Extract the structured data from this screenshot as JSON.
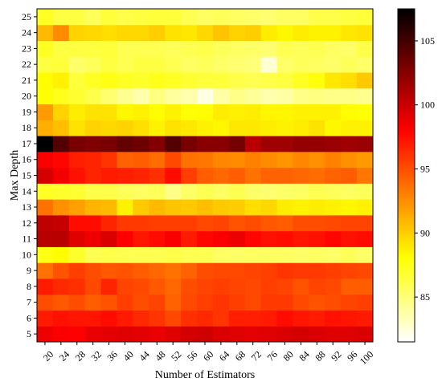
{
  "chart_data": {
    "type": "heatmap",
    "title": "",
    "xlabel": "Number of Estimators",
    "ylabel": "Max Depth",
    "x": [
      20,
      24,
      28,
      32,
      36,
      40,
      44,
      48,
      52,
      56,
      60,
      64,
      68,
      72,
      76,
      80,
      84,
      88,
      92,
      96,
      100
    ],
    "y": [
      5,
      6,
      7,
      8,
      9,
      10,
      11,
      12,
      13,
      14,
      15,
      16,
      17,
      18,
      19,
      20,
      21,
      22,
      23,
      24,
      25
    ],
    "colormap": "hot_r",
    "colorbar": {
      "min": 81.5,
      "max": 107.5,
      "ticks": [
        85,
        90,
        95,
        100,
        105
      ]
    },
    "z": [
      [
        98.6,
        98.2,
        98.0,
        98.8,
        99.0,
        99.2,
        99.0,
        98.8,
        99.2,
        99.6,
        99.8,
        99.4,
        99.2,
        99.0,
        99.2,
        99.4,
        99.6,
        99.4,
        99.2,
        99.2,
        99.4
      ],
      [
        97.0,
        97.4,
        97.2,
        97.2,
        97.6,
        97.0,
        96.4,
        96.0,
        95.2,
        96.2,
        96.4,
        96.0,
        96.8,
        96.8,
        97.0,
        97.6,
        97.2,
        97.0,
        97.4,
        97.2,
        97.0
      ],
      [
        95.0,
        94.6,
        95.0,
        94.4,
        94.8,
        95.6,
        95.0,
        95.4,
        94.2,
        95.2,
        95.6,
        96.0,
        95.6,
        95.2,
        95.8,
        95.8,
        95.2,
        94.8,
        95.0,
        95.4,
        95.6
      ],
      [
        97.0,
        96.4,
        96.2,
        95.2,
        96.6,
        95.4,
        95.2,
        94.6,
        94.0,
        95.0,
        95.4,
        95.6,
        95.4,
        95.2,
        95.6,
        95.4,
        94.8,
        95.4,
        95.2,
        94.4,
        94.4
      ],
      [
        93.6,
        94.8,
        95.6,
        95.0,
        94.6,
        94.8,
        94.4,
        94.0,
        93.6,
        94.2,
        95.0,
        95.2,
        95.2,
        95.4,
        95.6,
        96.0,
        95.8,
        95.8,
        95.6,
        95.4,
        95.2
      ],
      [
        87.6,
        88.2,
        87.0,
        86.0,
        86.2,
        86.0,
        86.0,
        86.0,
        86.2,
        86.0,
        86.0,
        85.6,
        85.4,
        85.6,
        85.6,
        85.6,
        85.4,
        85.6,
        85.4,
        85.8,
        85.4
      ],
      [
        100.6,
        100.6,
        99.2,
        98.6,
        99.4,
        98.0,
        97.2,
        97.6,
        98.2,
        97.0,
        97.8,
        98.2,
        98.6,
        97.8,
        97.4,
        97.6,
        97.2,
        97.4,
        97.8,
        97.4,
        97.6
      ],
      [
        100.4,
        100.2,
        97.6,
        97.6,
        96.6,
        95.8,
        95.8,
        95.6,
        95.6,
        95.6,
        95.2,
        95.4,
        94.8,
        95.0,
        94.6,
        94.4,
        95.0,
        95.0,
        95.2,
        95.4,
        95.4
      ],
      [
        93.6,
        92.4,
        91.8,
        91.0,
        90.8,
        88.6,
        90.2,
        90.8,
        90.4,
        90.2,
        90.6,
        90.2,
        90.0,
        89.4,
        89.6,
        88.8,
        88.6,
        88.8,
        88.6,
        88.4,
        88.6
      ],
      [
        87.2,
        87.0,
        86.8,
        86.2,
        86.2,
        85.8,
        85.6,
        85.8,
        84.6,
        85.4,
        86.0,
        85.6,
        86.0,
        85.4,
        85.2,
        85.4,
        85.6,
        86.0,
        85.8,
        85.6,
        85.8
      ],
      [
        99.6,
        98.4,
        97.4,
        96.6,
        97.0,
        96.8,
        96.6,
        96.2,
        97.6,
        95.6,
        94.4,
        94.0,
        94.4,
        93.6,
        94.2,
        94.2,
        94.0,
        93.8,
        94.2,
        94.4,
        93.4
      ],
      [
        98.2,
        97.8,
        96.8,
        96.6,
        96.0,
        94.2,
        94.4,
        93.8,
        95.2,
        93.6,
        93.4,
        92.8,
        92.6,
        93.0,
        92.6,
        92.2,
        92.8,
        92.4,
        93.0,
        92.4,
        92.0
      ],
      [
        107.5,
        104.4,
        103.0,
        102.8,
        103.0,
        103.8,
        103.4,
        102.6,
        104.4,
        103.0,
        102.4,
        102.4,
        103.2,
        100.6,
        101.6,
        101.6,
        102.0,
        102.0,
        101.8,
        101.6,
        101.8
      ],
      [
        91.2,
        90.6,
        89.2,
        89.8,
        89.6,
        89.8,
        89.4,
        88.6,
        89.2,
        89.0,
        88.6,
        88.4,
        89.0,
        89.0,
        88.8,
        88.6,
        88.8,
        89.2,
        88.4,
        88.6,
        88.6
      ],
      [
        92.0,
        89.8,
        88.8,
        89.2,
        89.2,
        88.4,
        88.6,
        88.2,
        88.6,
        88.0,
        88.2,
        88.8,
        88.6,
        88.8,
        88.4,
        88.4,
        88.6,
        88.6,
        88.6,
        88.2,
        88.0
      ],
      [
        88.0,
        87.4,
        86.8,
        86.2,
        85.2,
        84.4,
        83.6,
        84.8,
        84.0,
        83.6,
        82.2,
        83.8,
        84.6,
        84.2,
        83.6,
        83.8,
        84.6,
        84.8,
        84.6,
        84.6,
        84.4
      ],
      [
        88.2,
        88.6,
        86.6,
        87.2,
        87.6,
        87.2,
        87.0,
        87.4,
        87.2,
        86.8,
        86.6,
        86.6,
        86.2,
        86.0,
        86.2,
        86.4,
        87.2,
        87.8,
        89.0,
        89.4,
        90.2
      ],
      [
        86.4,
        86.6,
        85.4,
        85.8,
        86.4,
        86.0,
        86.4,
        86.4,
        86.0,
        85.6,
        85.8,
        85.4,
        85.2,
        85.0,
        82.6,
        85.4,
        85.8,
        85.6,
        85.4,
        85.8,
        85.4
      ],
      [
        87.2,
        86.4,
        86.4,
        86.4,
        86.6,
        86.0,
        86.0,
        86.0,
        85.8,
        86.0,
        86.2,
        85.8,
        85.6,
        85.4,
        85.2,
        86.0,
        85.8,
        86.0,
        85.6,
        85.4,
        86.2
      ],
      [
        90.8,
        92.6,
        89.8,
        89.6,
        89.4,
        89.6,
        89.6,
        90.0,
        89.2,
        89.0,
        89.6,
        90.4,
        89.8,
        90.0,
        88.8,
        88.4,
        88.8,
        88.6,
        88.6,
        89.0,
        89.2
      ],
      [
        87.2,
        86.4,
        86.4,
        85.8,
        86.6,
        86.2,
        86.4,
        86.6,
        86.6,
        86.0,
        85.6,
        85.8,
        85.6,
        85.4,
        85.2,
        85.6,
        85.6,
        86.2,
        86.2,
        86.4,
        86.6
      ]
    ]
  }
}
